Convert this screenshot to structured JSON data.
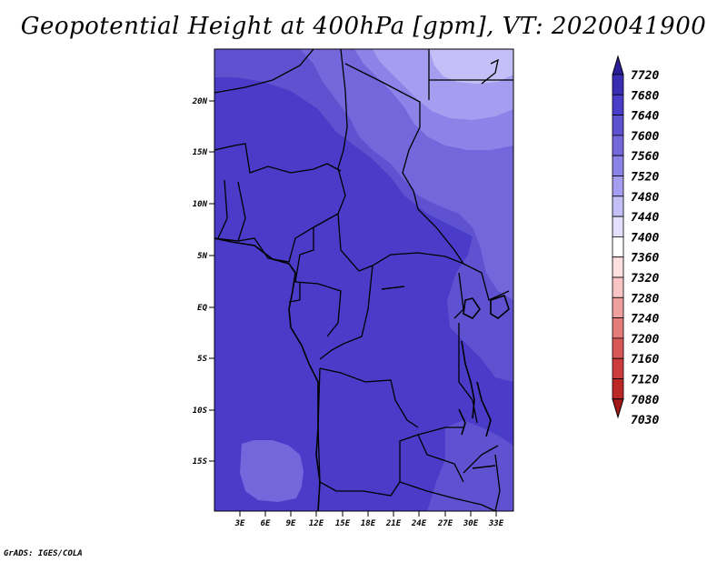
{
  "title": "Geopotential Height at 400hPa [gpm], VT: 2020041900",
  "credit": "GrADS: IGES/COLA",
  "map": {
    "region": "Central Africa",
    "lon_labels": [
      "3E",
      "6E",
      "9E",
      "12E",
      "15E",
      "18E",
      "21E",
      "24E",
      "27E",
      "30E",
      "33E"
    ],
    "lat_labels": [
      "20N",
      "15N",
      "10N",
      "5N",
      "EQ",
      "5S",
      "10S",
      "15S"
    ]
  },
  "colorbar": {
    "levels": [
      "7720",
      "7680",
      "7640",
      "7600",
      "7560",
      "7520",
      "7480",
      "7440",
      "7400",
      "7360",
      "7320",
      "7280",
      "7240",
      "7200",
      "7160",
      "7120",
      "7080",
      "7030"
    ],
    "colors": [
      "#2a1d9a",
      "#3a2db4",
      "#4a3cc8",
      "#5e52d0",
      "#7467dc",
      "#8c83e8",
      "#a59ef0",
      "#c4c0f7",
      "#e2e0fb",
      "#ffffff",
      "#fce0e0",
      "#f8c4c4",
      "#f0a0a0",
      "#e47c7c",
      "#d85858",
      "#cc3c3c",
      "#bc2828",
      "#a41818"
    ]
  },
  "fill_colors": {
    "base": "#4a3cc8",
    "mid": "#5e52d0",
    "light": "#7467dc",
    "lighter": "#8c83e8",
    "lightest": "#a59ef0",
    "pale": "#c4c0f7"
  }
}
